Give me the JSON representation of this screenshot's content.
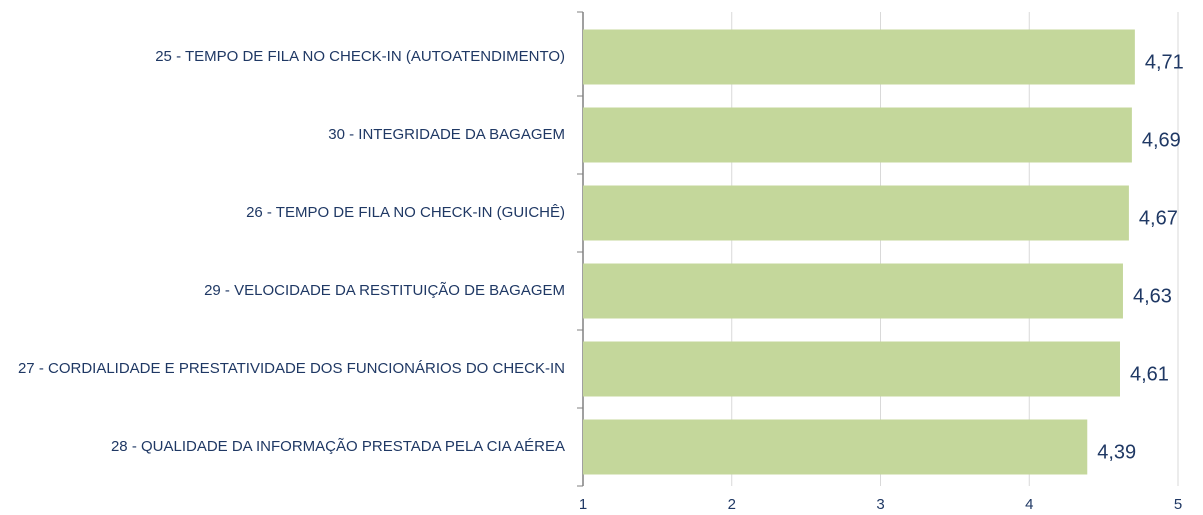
{
  "chart_data": {
    "type": "bar",
    "orientation": "horizontal",
    "categories": [
      "25 - TEMPO DE FILA NO CHECK-IN (AUTOATENDIMENTO)",
      "30 - INTEGRIDADE DA BAGAGEM",
      "26 - TEMPO DE FILA NO CHECK-IN (GUICHÊ)",
      "29 - VELOCIDADE DA RESTITUIÇÃO DE BAGAGEM",
      "27 - CORDIALIDADE E PRESTATIVIDADE DOS FUNCIONÁRIOS DO CHECK-IN",
      "28 - QUALIDADE DA INFORMAÇÃO PRESTADA PELA CIA AÉREA"
    ],
    "values": [
      4.71,
      4.69,
      4.67,
      4.63,
      4.61,
      4.39
    ],
    "value_labels": [
      "4,71",
      "4,69",
      "4,67",
      "4,63",
      "4,61",
      "4,39"
    ],
    "color": "#c4d79b",
    "xlim": [
      1,
      5
    ],
    "xticks": [
      1,
      2,
      3,
      4,
      5
    ],
    "grid": true
  }
}
